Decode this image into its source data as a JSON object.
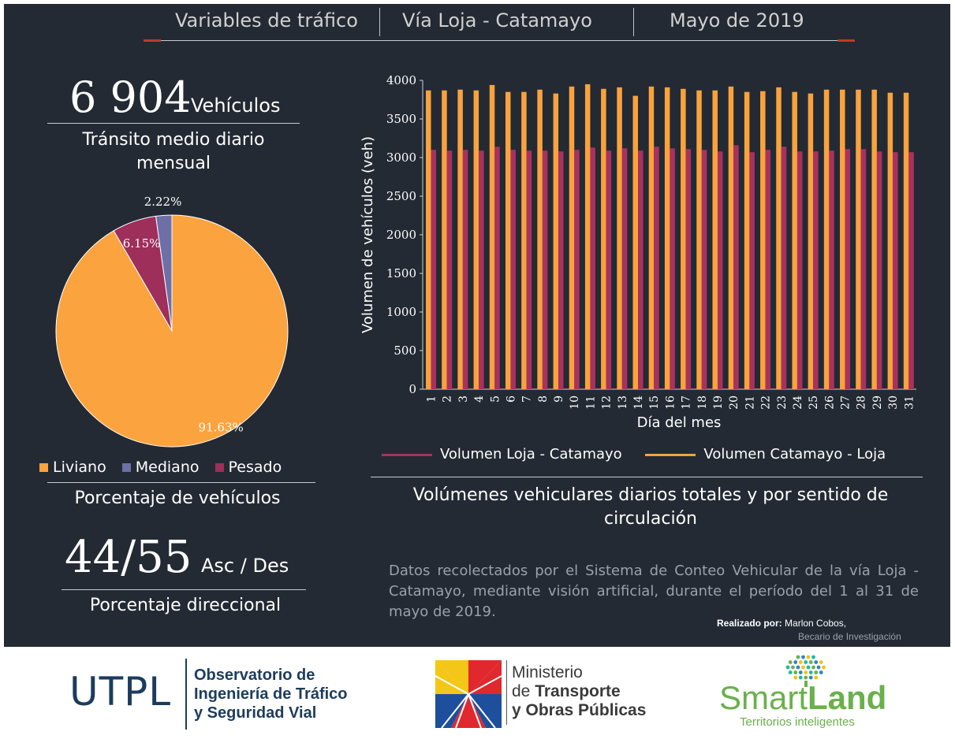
{
  "header": {
    "item1": "Variables de tráfico",
    "item2": "Vía Loja - Catamayo",
    "item3": "Mayo de 2019"
  },
  "tmdm": {
    "value": "6 904",
    "unit": "Vehículos",
    "label": "Tránsito medio diario mensual"
  },
  "pie_title": "Porcentaje de vehículos",
  "directional": {
    "value": "44/55",
    "unit": "Asc / Des",
    "label": "Porcentaje direccional"
  },
  "bar_title": "Volúmenes vehiculares diarios totales y por sentido de circulación",
  "description": "Datos recolectados por el Sistema de Conteo Vehicular de la vía Loja - Catamayo, mediante visión artificial, durante el período del 1 al 31 de mayo de 2019.",
  "credits": {
    "label": "Realizado por:",
    "name": "Marlon Cobos,",
    "role": "Becario de Investigación"
  },
  "footer": {
    "utpl": "UTPL",
    "observatorio_line1": "Observatorio de",
    "observatorio_line2": "Ingeniería de Tráfico",
    "observatorio_line3": "y Seguridad Vial",
    "ministerio_line1": "Ministerio",
    "ministerio_line2_prefix": "de",
    "ministerio_line2_bold": "Transporte",
    "ministerio_line3": "y Obras Públicas",
    "smart": "Smart",
    "land": "Land",
    "smartland_tagline": "Territorios inteligentes"
  },
  "colors": {
    "background": "#232a33",
    "liviano": "#fba33f",
    "mediano": "#6d6fa6",
    "pesado": "#9e2e5a",
    "loja_catamayo": "#a8325e",
    "catamayo_loja": "#f9a23e"
  },
  "chart_data": [
    {
      "type": "pie",
      "title": "Porcentaje de vehículos",
      "categories": [
        "Liviano",
        "Mediano",
        "Pesado"
      ],
      "values": [
        91.63,
        2.22,
        6.15
      ],
      "value_labels": [
        "91.63%",
        "2.22%",
        "6.15%"
      ],
      "colors": [
        "#fba33f",
        "#6d6fa6",
        "#9e2e5a"
      ],
      "legend_position": "bottom"
    },
    {
      "type": "bar",
      "title": "Volúmenes vehiculares diarios totales y por sentido de circulación",
      "xlabel": "Día del mes",
      "ylabel": "Volumen de vehículos (veh)",
      "ylim": [
        0,
        4000
      ],
      "yticks": [
        0,
        500,
        1000,
        1500,
        2000,
        2500,
        3000,
        3500,
        4000
      ],
      "grid": false,
      "legend_position": "bottom",
      "categories": [
        "1",
        "2",
        "3",
        "4",
        "5",
        "6",
        "7",
        "8",
        "9",
        "10",
        "11",
        "12",
        "13",
        "14",
        "15",
        "16",
        "17",
        "18",
        "19",
        "20",
        "21",
        "22",
        "23",
        "24",
        "25",
        "26",
        "27",
        "28",
        "29",
        "30",
        "31"
      ],
      "series": [
        {
          "name": "Volumen Catamayo - Loja",
          "color": "#f9a23e",
          "values": [
            3870,
            3870,
            3880,
            3870,
            3940,
            3850,
            3850,
            3880,
            3830,
            3920,
            3950,
            3890,
            3910,
            3800,
            3920,
            3910,
            3890,
            3870,
            3870,
            3920,
            3850,
            3860,
            3910,
            3850,
            3830,
            3880,
            3880,
            3880,
            3880,
            3840,
            3840
          ]
        },
        {
          "name": "Volumen Loja - Catamayo",
          "color": "#a8325e",
          "values": [
            3100,
            3090,
            3100,
            3090,
            3140,
            3100,
            3090,
            3090,
            3080,
            3100,
            3130,
            3090,
            3120,
            3090,
            3140,
            3120,
            3110,
            3100,
            3080,
            3160,
            3070,
            3100,
            3140,
            3080,
            3080,
            3090,
            3110,
            3110,
            3080,
            3070,
            3070
          ]
        }
      ]
    }
  ]
}
